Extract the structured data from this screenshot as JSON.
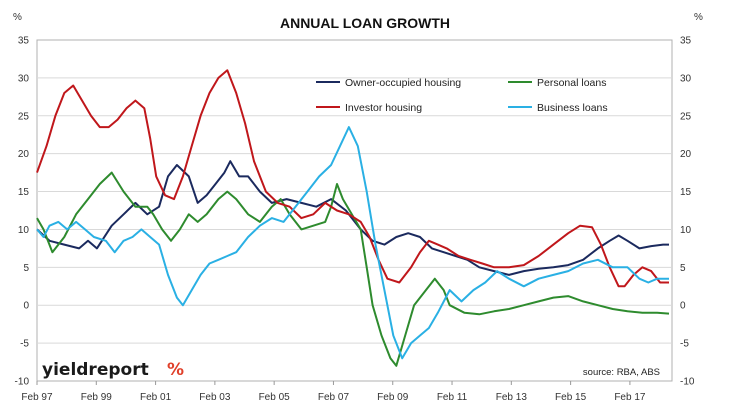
{
  "chart_data": {
    "type": "line",
    "title": "ANNUAL LOAN GROWTH",
    "ylabel_left": "%",
    "ylabel_right": "%",
    "ylim": [
      -10,
      35
    ],
    "yticks": [
      -10,
      -5,
      0,
      5,
      10,
      15,
      20,
      25,
      30,
      35
    ],
    "x_start": 1997.08,
    "x_end": 2018.5,
    "xticks": [
      {
        "label": "Feb 97",
        "x": 1997.08
      },
      {
        "label": "Feb 99",
        "x": 1999.08
      },
      {
        "label": "Feb 01",
        "x": 2001.08
      },
      {
        "label": "Feb 03",
        "x": 2003.08
      },
      {
        "label": "Feb 05",
        "x": 2005.08
      },
      {
        "label": "Feb 07",
        "x": 2007.08
      },
      {
        "label": "Feb 09",
        "x": 2009.08
      },
      {
        "label": "Feb 11",
        "x": 2011.08
      },
      {
        "label": "Feb 13",
        "x": 2013.08
      },
      {
        "label": "Feb 15",
        "x": 2015.08
      },
      {
        "label": "Feb 17",
        "x": 2017.08
      }
    ],
    "grid": true,
    "legend_position": "top-center",
    "source": "source: RBA, ABS",
    "brand_text": "yieldreport",
    "brand_symbol": "%",
    "series": [
      {
        "name": "Owner-occupied housing",
        "color": "#1b2a5e",
        "points": [
          [
            1997.08,
            10
          ],
          [
            1997.5,
            8.5
          ],
          [
            1998.0,
            8
          ],
          [
            1998.5,
            7.5
          ],
          [
            1998.8,
            8.5
          ],
          [
            1999.1,
            7.5
          ],
          [
            1999.6,
            10.5
          ],
          [
            2000.0,
            12
          ],
          [
            2000.4,
            13.5
          ],
          [
            2000.8,
            12
          ],
          [
            2001.2,
            13
          ],
          [
            2001.5,
            17
          ],
          [
            2001.8,
            18.5
          ],
          [
            2002.2,
            17
          ],
          [
            2002.5,
            13.5
          ],
          [
            2002.8,
            14.5
          ],
          [
            2003.1,
            16
          ],
          [
            2003.4,
            17.5
          ],
          [
            2003.6,
            19
          ],
          [
            2003.9,
            17
          ],
          [
            2004.2,
            17
          ],
          [
            2004.6,
            15
          ],
          [
            2005.0,
            13.5
          ],
          [
            2005.5,
            14
          ],
          [
            2006.0,
            13.5
          ],
          [
            2006.5,
            13
          ],
          [
            2007.0,
            14
          ],
          [
            2007.5,
            12.5
          ],
          [
            2008.0,
            10
          ],
          [
            2008.4,
            8.5
          ],
          [
            2008.8,
            8
          ],
          [
            2009.2,
            9
          ],
          [
            2009.6,
            9.5
          ],
          [
            2010.0,
            9
          ],
          [
            2010.4,
            7.5
          ],
          [
            2010.8,
            7
          ],
          [
            2011.2,
            6.5
          ],
          [
            2011.6,
            6
          ],
          [
            2012.0,
            5
          ],
          [
            2012.5,
            4.5
          ],
          [
            2013.0,
            4
          ],
          [
            2013.5,
            4.5
          ],
          [
            2014.0,
            4.8
          ],
          [
            2014.5,
            5
          ],
          [
            2015.0,
            5.3
          ],
          [
            2015.5,
            6
          ],
          [
            2016.0,
            7.5
          ],
          [
            2016.4,
            8.5
          ],
          [
            2016.7,
            9.2
          ],
          [
            2017.0,
            8.5
          ],
          [
            2017.4,
            7.5
          ],
          [
            2017.8,
            7.8
          ],
          [
            2018.2,
            8
          ],
          [
            2018.4,
            8
          ]
        ]
      },
      {
        "name": "Personal loans",
        "color": "#2e8b2e",
        "points": [
          [
            1997.08,
            11.5
          ],
          [
            1997.3,
            10
          ],
          [
            1997.6,
            7
          ],
          [
            1998.0,
            9
          ],
          [
            1998.4,
            12
          ],
          [
            1998.8,
            14
          ],
          [
            1999.2,
            16
          ],
          [
            1999.6,
            17.5
          ],
          [
            2000.0,
            15
          ],
          [
            2000.4,
            13
          ],
          [
            2000.8,
            13
          ],
          [
            2001.0,
            12
          ],
          [
            2001.3,
            10
          ],
          [
            2001.6,
            8.5
          ],
          [
            2001.9,
            10
          ],
          [
            2002.2,
            12
          ],
          [
            2002.5,
            11
          ],
          [
            2002.8,
            12
          ],
          [
            2003.2,
            14
          ],
          [
            2003.5,
            15
          ],
          [
            2003.8,
            14
          ],
          [
            2004.2,
            12
          ],
          [
            2004.6,
            11
          ],
          [
            2005.0,
            13
          ],
          [
            2005.3,
            14
          ],
          [
            2005.6,
            12
          ],
          [
            2006.0,
            10
          ],
          [
            2006.4,
            10.5
          ],
          [
            2006.8,
            11
          ],
          [
            2007.0,
            13
          ],
          [
            2007.2,
            16
          ],
          [
            2007.4,
            14
          ],
          [
            2007.7,
            12
          ],
          [
            2008.0,
            10
          ],
          [
            2008.2,
            5
          ],
          [
            2008.4,
            0
          ],
          [
            2008.7,
            -4
          ],
          [
            2009.0,
            -7
          ],
          [
            2009.2,
            -8
          ],
          [
            2009.5,
            -4
          ],
          [
            2009.8,
            0
          ],
          [
            2010.2,
            2
          ],
          [
            2010.5,
            3.5
          ],
          [
            2010.8,
            2
          ],
          [
            2011.0,
            0
          ],
          [
            2011.5,
            -1
          ],
          [
            2012.0,
            -1.2
          ],
          [
            2012.5,
            -0.8
          ],
          [
            2013.0,
            -0.5
          ],
          [
            2013.5,
            0
          ],
          [
            2014.0,
            0.5
          ],
          [
            2014.5,
            1
          ],
          [
            2015.0,
            1.2
          ],
          [
            2015.5,
            0.5
          ],
          [
            2016.0,
            0
          ],
          [
            2016.5,
            -0.5
          ],
          [
            2017.0,
            -0.8
          ],
          [
            2017.5,
            -1
          ],
          [
            2018.0,
            -1
          ],
          [
            2018.4,
            -1.1
          ]
        ]
      },
      {
        "name": "Investor housing",
        "color": "#c0171b",
        "points": [
          [
            1997.08,
            17.5
          ],
          [
            1997.4,
            21
          ],
          [
            1997.7,
            25
          ],
          [
            1998.0,
            28
          ],
          [
            1998.3,
            29
          ],
          [
            1998.6,
            27
          ],
          [
            1998.9,
            25
          ],
          [
            1999.2,
            23.5
          ],
          [
            1999.5,
            23.5
          ],
          [
            1999.8,
            24.5
          ],
          [
            2000.1,
            26
          ],
          [
            2000.4,
            27
          ],
          [
            2000.7,
            26
          ],
          [
            2000.9,
            22
          ],
          [
            2001.1,
            17
          ],
          [
            2001.4,
            14.5
          ],
          [
            2001.7,
            14
          ],
          [
            2002.0,
            17
          ],
          [
            2002.3,
            21
          ],
          [
            2002.6,
            25
          ],
          [
            2002.9,
            28
          ],
          [
            2003.2,
            30
          ],
          [
            2003.5,
            31
          ],
          [
            2003.8,
            28
          ],
          [
            2004.1,
            24
          ],
          [
            2004.4,
            19
          ],
          [
            2004.8,
            15
          ],
          [
            2005.2,
            13.5
          ],
          [
            2005.6,
            13
          ],
          [
            2006.0,
            11.5
          ],
          [
            2006.4,
            12
          ],
          [
            2006.8,
            13.5
          ],
          [
            2007.2,
            12.5
          ],
          [
            2007.6,
            12
          ],
          [
            2008.0,
            11
          ],
          [
            2008.3,
            9
          ],
          [
            2008.6,
            6
          ],
          [
            2008.9,
            3.5
          ],
          [
            2009.3,
            3
          ],
          [
            2009.7,
            5
          ],
          [
            2010.0,
            7
          ],
          [
            2010.3,
            8.5
          ],
          [
            2010.6,
            8
          ],
          [
            2010.9,
            7.5
          ],
          [
            2011.3,
            6.5
          ],
          [
            2011.7,
            6
          ],
          [
            2012.1,
            5.5
          ],
          [
            2012.5,
            5
          ],
          [
            2013.0,
            5
          ],
          [
            2013.5,
            5.3
          ],
          [
            2014.0,
            6.5
          ],
          [
            2014.5,
            8
          ],
          [
            2015.0,
            9.5
          ],
          [
            2015.4,
            10.5
          ],
          [
            2015.8,
            10.3
          ],
          [
            2016.1,
            8
          ],
          [
            2016.4,
            5
          ],
          [
            2016.7,
            2.5
          ],
          [
            2016.9,
            2.5
          ],
          [
            2017.2,
            4
          ],
          [
            2017.5,
            5
          ],
          [
            2017.8,
            4.5
          ],
          [
            2018.1,
            3
          ],
          [
            2018.4,
            3
          ]
        ]
      },
      {
        "name": "Business loans",
        "color": "#2ab0e4",
        "points": [
          [
            1997.08,
            10
          ],
          [
            1997.3,
            9
          ],
          [
            1997.5,
            10.5
          ],
          [
            1997.8,
            11
          ],
          [
            1998.1,
            10
          ],
          [
            1998.4,
            11
          ],
          [
            1998.7,
            10
          ],
          [
            1999.0,
            9
          ],
          [
            1999.4,
            8.5
          ],
          [
            1999.7,
            7
          ],
          [
            2000.0,
            8.5
          ],
          [
            2000.3,
            9
          ],
          [
            2000.6,
            10
          ],
          [
            2000.9,
            9
          ],
          [
            2001.2,
            8
          ],
          [
            2001.5,
            4
          ],
          [
            2001.8,
            1
          ],
          [
            2002.0,
            0
          ],
          [
            2002.3,
            2
          ],
          [
            2002.6,
            4
          ],
          [
            2002.9,
            5.5
          ],
          [
            2003.2,
            6
          ],
          [
            2003.5,
            6.5
          ],
          [
            2003.8,
            7
          ],
          [
            2004.2,
            9
          ],
          [
            2004.6,
            10.5
          ],
          [
            2005.0,
            11.5
          ],
          [
            2005.4,
            11
          ],
          [
            2005.8,
            13
          ],
          [
            2006.2,
            15
          ],
          [
            2006.6,
            17
          ],
          [
            2007.0,
            18.5
          ],
          [
            2007.3,
            21
          ],
          [
            2007.6,
            23.5
          ],
          [
            2007.9,
            21
          ],
          [
            2008.2,
            15
          ],
          [
            2008.5,
            8
          ],
          [
            2008.8,
            2
          ],
          [
            2009.1,
            -4
          ],
          [
            2009.4,
            -7
          ],
          [
            2009.7,
            -5
          ],
          [
            2010.0,
            -4
          ],
          [
            2010.3,
            -3
          ],
          [
            2010.6,
            -1
          ],
          [
            2011.0,
            2
          ],
          [
            2011.4,
            0.5
          ],
          [
            2011.8,
            2
          ],
          [
            2012.2,
            3
          ],
          [
            2012.6,
            4.5
          ],
          [
            2013.0,
            3.5
          ],
          [
            2013.5,
            2.5
          ],
          [
            2014.0,
            3.5
          ],
          [
            2014.5,
            4
          ],
          [
            2015.0,
            4.5
          ],
          [
            2015.5,
            5.5
          ],
          [
            2016.0,
            6
          ],
          [
            2016.5,
            5
          ],
          [
            2017.0,
            5
          ],
          [
            2017.4,
            3.5
          ],
          [
            2017.7,
            3
          ],
          [
            2018.0,
            3.5
          ],
          [
            2018.4,
            3.5
          ]
        ]
      }
    ]
  }
}
